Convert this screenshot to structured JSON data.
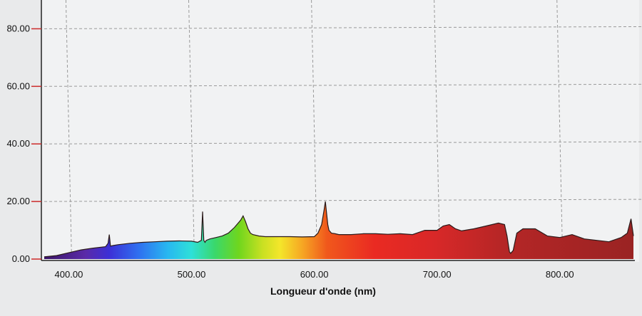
{
  "chart_data": {
    "type": "area",
    "xlabel": "Longueur d'onde (nm)",
    "xlim": [
      380,
      860
    ],
    "ylim": [
      0,
      90
    ],
    "x_ticks": [
      400,
      500,
      600,
      700,
      800
    ],
    "x_tick_labels": [
      "400.00",
      "500.00",
      "600.00",
      "700.00",
      "800.00"
    ],
    "y_ticks": [
      0,
      20,
      40,
      60,
      80
    ],
    "y_tick_labels": [
      "0.00",
      "20.00",
      "40.00",
      "60.00",
      "80.00"
    ],
    "grid": true,
    "grid_style": "dashed",
    "fill": "visible-spectrum gradient",
    "series": [
      {
        "x": [
          380,
          390,
          400,
          410,
          420,
          430,
          432,
          433,
          434,
          436,
          440,
          450,
          460,
          470,
          480,
          490,
          500,
          505,
          508,
          509,
          510,
          511,
          512,
          515,
          520,
          525,
          530,
          535,
          540,
          542,
          544,
          546,
          548,
          550,
          555,
          560,
          570,
          580,
          590,
          600,
          603,
          606,
          608,
          609,
          610,
          611,
          612,
          614,
          617,
          620,
          630,
          640,
          650,
          660,
          670,
          680,
          690,
          700,
          705,
          710,
          715,
          720,
          730,
          740,
          750,
          755,
          757,
          759,
          760,
          762,
          765,
          770,
          780,
          790,
          800,
          810,
          820,
          830,
          840,
          850,
          855,
          858,
          860
        ],
        "y": [
          0.8,
          1.2,
          2.2,
          3.2,
          3.8,
          4.3,
          5.5,
          8.5,
          4.5,
          4.7,
          5.0,
          5.5,
          5.8,
          6.0,
          6.2,
          6.3,
          6.2,
          5.8,
          6.5,
          16.5,
          6.5,
          5.8,
          6.5,
          7.0,
          7.5,
          8.0,
          9.0,
          11.0,
          13.5,
          15.0,
          13.0,
          10.5,
          9.0,
          8.5,
          8.0,
          7.8,
          7.8,
          7.8,
          7.7,
          7.8,
          9.0,
          12.0,
          17.0,
          20.0,
          16.0,
          12.0,
          10.0,
          9.0,
          8.8,
          8.5,
          8.5,
          8.8,
          8.8,
          8.6,
          8.8,
          8.5,
          10.0,
          10.0,
          11.5,
          12.0,
          10.5,
          9.8,
          10.5,
          11.5,
          12.5,
          12.0,
          8.0,
          2.5,
          2.0,
          3.0,
          9.0,
          10.5,
          10.5,
          8.0,
          7.5,
          8.5,
          7.0,
          6.5,
          6.0,
          7.5,
          9.0,
          14.0,
          8.0
        ]
      }
    ]
  }
}
